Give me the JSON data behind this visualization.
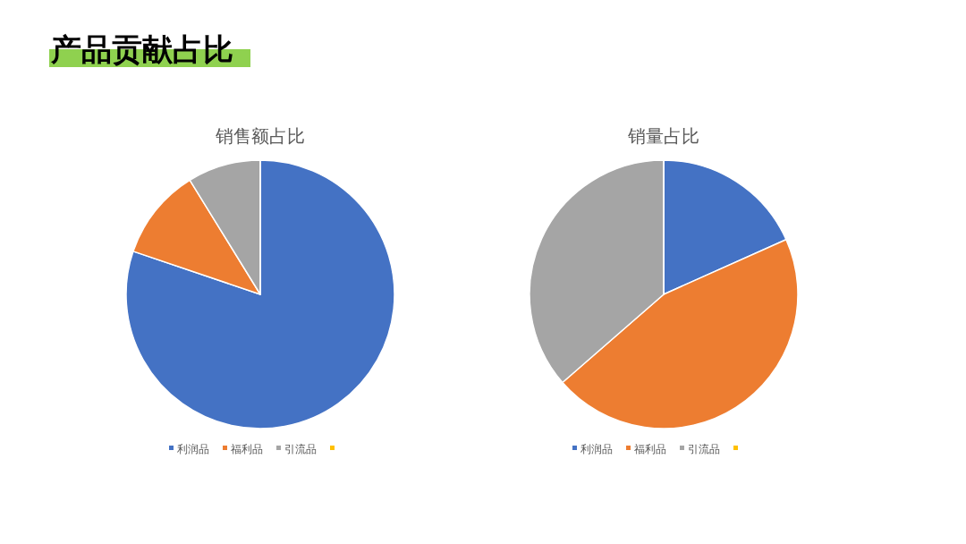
{
  "chart_data": [
    {
      "type": "pie",
      "title": "销售额占比",
      "annotations": [
        "产品贡献占比"
      ],
      "categories": [
        "利润品",
        "福利品",
        "引流品",
        null
      ],
      "values": [
        80.2,
        11,
        8.8,
        0
      ],
      "colors": [
        "#4472c4",
        "#ed7d31",
        "#a5a5a5",
        "#ffc000"
      ],
      "legend": "bottom"
    },
    {
      "type": "pie",
      "title": "销量占比",
      "categories": [
        "利润品",
        "福利品",
        "引流品",
        null
      ],
      "values": [
        18.3,
        45.3,
        36.4,
        0
      ],
      "colors": [
        "#4472c4",
        "#ed7d31",
        "#a5a5a5",
        "#ffc000"
      ],
      "legend": "bottom"
    }
  ]
}
